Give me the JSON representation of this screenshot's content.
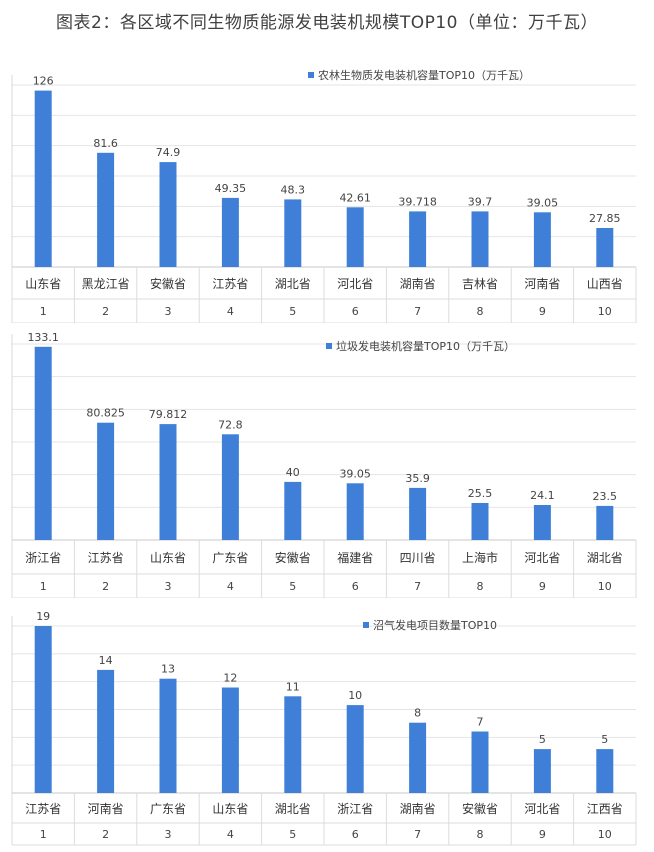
{
  "page": {
    "title": "图表2：各区域不同生物质能源发电装机规模TOP10（单位：万千瓦）"
  },
  "chart_data": [
    {
      "type": "bar",
      "legend": "农林生物质发电装机容量TOP10（万千瓦）",
      "categories": [
        "山东省",
        "黑龙江省",
        "安徽省",
        "江苏省",
        "湖北省",
        "河北省",
        "湖南省",
        "吉林省",
        "河南省",
        "山西省"
      ],
      "ranks": [
        "1",
        "2",
        "3",
        "4",
        "5",
        "6",
        "7",
        "8",
        "9",
        "10"
      ],
      "values": [
        126,
        81.6,
        74.9,
        49.35,
        48.3,
        42.61,
        39.718,
        39.7,
        39.05,
        27.85
      ],
      "value_labels": [
        "126",
        "81.6",
        "74.9",
        "49.35",
        "48.3",
        "42.61",
        "39.718",
        "39.7",
        "39.05",
        "27.85"
      ],
      "ylim": [
        0,
        130
      ],
      "grid": true,
      "legend_position": "top-right",
      "color": "#3f7fd8"
    },
    {
      "type": "bar",
      "legend": "垃圾发电装机容量TOP10（万千瓦）",
      "categories": [
        "浙江省",
        "江苏省",
        "山东省",
        "广东省",
        "安徽省",
        "福建省",
        "四川省",
        "上海市",
        "河北省",
        "湖北省"
      ],
      "ranks": [
        "1",
        "2",
        "3",
        "4",
        "5",
        "6",
        "7",
        "8",
        "9",
        "10"
      ],
      "values": [
        133.1,
        80.825,
        79.812,
        72.8,
        40,
        39.05,
        35.9,
        25.5,
        24.1,
        23.5
      ],
      "value_labels": [
        "133.1",
        "80.825",
        "79.812",
        "72.8",
        "40",
        "39.05",
        "35.9",
        "25.5",
        "24.1",
        "23.5"
      ],
      "ylim": [
        0,
        135
      ],
      "grid": true,
      "legend_position": "top-right",
      "color": "#3f7fd8"
    },
    {
      "type": "bar",
      "legend": "沼气发电项目数量TOP10",
      "categories": [
        "江苏省",
        "河南省",
        "广东省",
        "山东省",
        "湖北省",
        "浙江省",
        "湖南省",
        "安徽省",
        "河北省",
        "江西省"
      ],
      "ranks": [
        "1",
        "2",
        "3",
        "4",
        "5",
        "6",
        "7",
        "8",
        "9",
        "10"
      ],
      "values": [
        19,
        14,
        13,
        12,
        11,
        10,
        8,
        7,
        5,
        5
      ],
      "value_labels": [
        "19",
        "14",
        "13",
        "12",
        "11",
        "10",
        "8",
        "7",
        "5",
        "5"
      ],
      "ylim": [
        0,
        19
      ],
      "grid": true,
      "legend_position": "top-right",
      "color": "#3f7fd8"
    }
  ]
}
